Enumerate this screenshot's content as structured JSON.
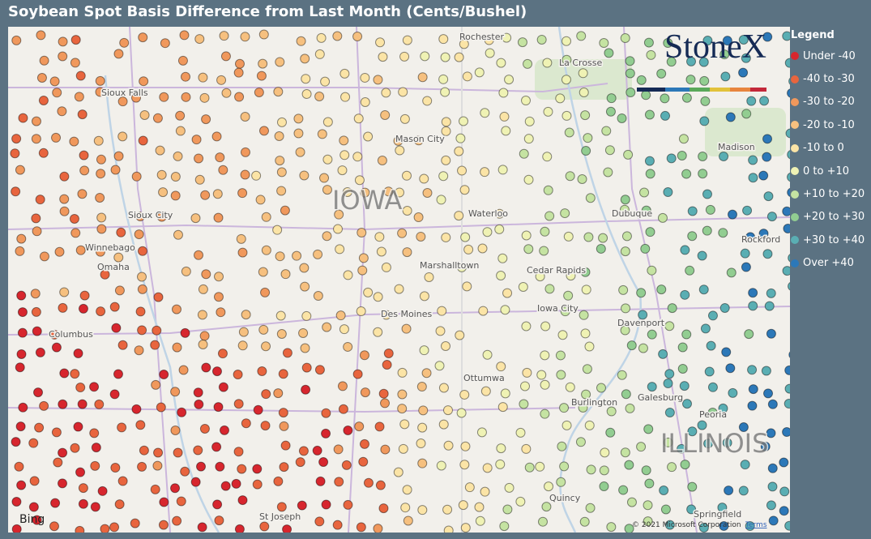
{
  "title": "Soybean Spot Basis Difference from Last Month (Cents/Bushel)",
  "legend": {
    "title": "Legend",
    "items": [
      {
        "label": "Under -40",
        "color": "#d7262e"
      },
      {
        "label": "-40 to -30",
        "color": "#e8653e"
      },
      {
        "label": "-30 to -20",
        "color": "#f0985c"
      },
      {
        "label": "-20 to -10",
        "color": "#f6c07f"
      },
      {
        "label": "-10 to 0",
        "color": "#fbe4a6"
      },
      {
        "label": "0 to +10",
        "color": "#eff2b4"
      },
      {
        "label": "+10 to +20",
        "color": "#c5e3a2"
      },
      {
        "label": "+20 to +30",
        "color": "#92cd91"
      },
      {
        "label": "+30 to +40",
        "color": "#5aaeb3"
      },
      {
        "label": "Over +40",
        "color": "#2c78b8"
      }
    ]
  },
  "logo": "StoneX",
  "map_labels": {
    "states": [
      "IOWA",
      "ILLINOIS"
    ],
    "cities": [
      "Rochester",
      "La Crosse",
      "Sioux Falls",
      "Mason City",
      "Madison",
      "Sioux City",
      "Waterloo",
      "Dubuque",
      "Rockford",
      "Winnebago",
      "Omaha",
      "Marshalltown",
      "Cedar Rapids",
      "Iowa City",
      "Des Moines",
      "Davenport",
      "Columbus",
      "Ottumwa",
      "Burlington",
      "Galesburg",
      "Peoria",
      "Quincy",
      "Springfield",
      "St Joseph"
    ]
  },
  "attribution": {
    "provider": "Bing",
    "copyright": "© 2021 Microsoft Corporation",
    "terms": "Terms"
  }
}
